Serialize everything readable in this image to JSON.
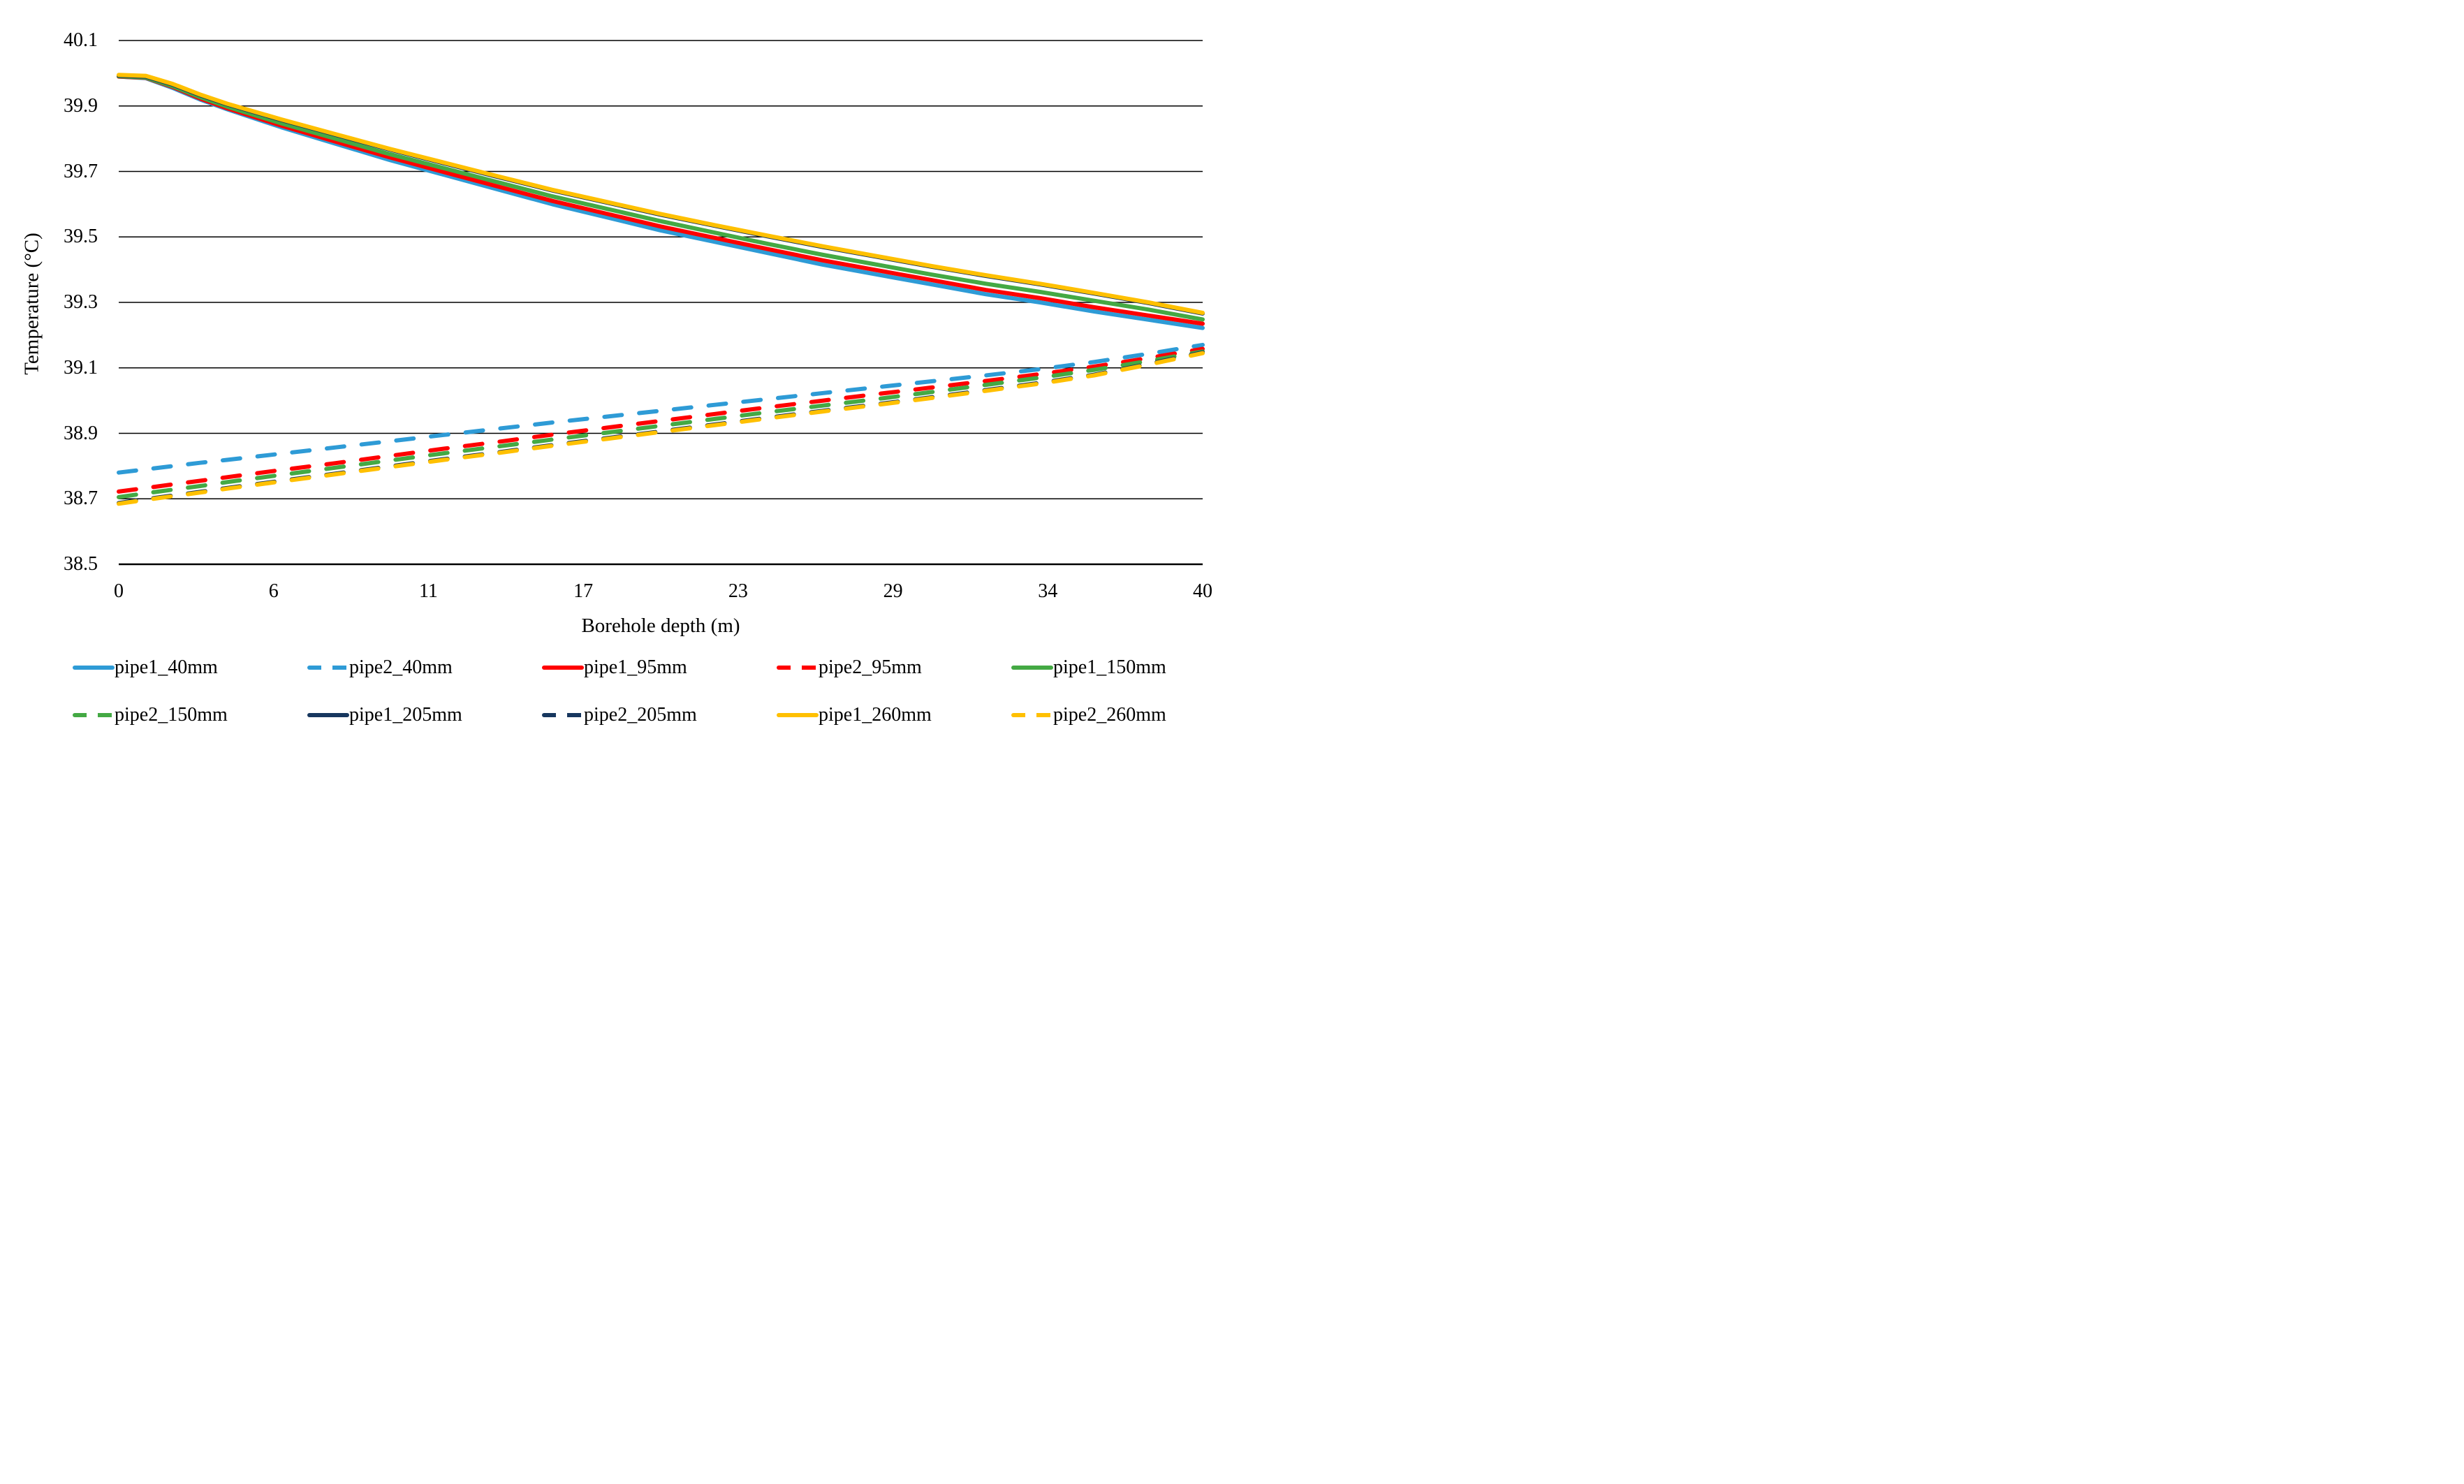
{
  "chart_data": {
    "type": "line",
    "title": "",
    "xlabel": "Borehole depth (m)",
    "ylabel": "Temperature (°C)",
    "xlim": [
      0,
      40
    ],
    "ylim": [
      38.5,
      40.1
    ],
    "grid": "horizontal-black-gridlines",
    "background": "#ffffff",
    "text_color": "#000000",
    "gridline_color": "#000000",
    "legend_position": "bottom",
    "legend_columns": 5,
    "x_tick_labels": [
      "0",
      "6",
      "11",
      "17",
      "23",
      "29",
      "34",
      "40"
    ],
    "y_tick_labels": [
      "40.1",
      "39.9",
      "39.7",
      "39.5",
      "39.3",
      "39.1",
      "38.9",
      "38.7",
      "38.5"
    ],
    "x": [
      0,
      1,
      2,
      3,
      4,
      6,
      8,
      10,
      12,
      14,
      16,
      18,
      20,
      22,
      24,
      26,
      28,
      30,
      32,
      34,
      36,
      38,
      40
    ],
    "series": [
      {
        "name": "pipe1_40mm",
        "color": "#2E9BD6",
        "style": "solid",
        "values": [
          39.99,
          39.985,
          39.955,
          39.92,
          39.89,
          39.835,
          39.785,
          39.735,
          39.69,
          39.645,
          39.6,
          39.56,
          39.52,
          39.485,
          39.45,
          39.415,
          39.385,
          39.355,
          39.325,
          39.3,
          39.272,
          39.247,
          39.222
        ]
      },
      {
        "name": "pipe2_40mm",
        "color": "#2E9BD6",
        "style": "dashed",
        "values": [
          38.78,
          38.79,
          38.8,
          38.81,
          38.819,
          38.838,
          38.857,
          38.876,
          38.895,
          38.914,
          38.933,
          38.951,
          38.969,
          38.987,
          39.005,
          39.023,
          39.041,
          39.059,
          39.077,
          39.096,
          39.118,
          39.143,
          39.17
        ]
      },
      {
        "name": "pipe1_95mm",
        "color": "#FF0000",
        "style": "solid",
        "values": [
          39.99,
          39.986,
          39.958,
          39.923,
          39.893,
          39.84,
          39.791,
          39.743,
          39.698,
          39.654,
          39.61,
          39.571,
          39.532,
          39.497,
          39.462,
          39.428,
          39.398,
          39.368,
          39.338,
          39.313,
          39.285,
          39.26,
          39.235
        ]
      },
      {
        "name": "pipe2_95mm",
        "color": "#FF0000",
        "style": "dashed",
        "values": [
          38.722,
          38.733,
          38.744,
          38.755,
          38.766,
          38.788,
          38.809,
          38.831,
          38.853,
          38.874,
          38.896,
          38.917,
          38.938,
          38.959,
          38.98,
          39.0,
          39.02,
          39.04,
          39.06,
          39.081,
          39.104,
          39.13,
          39.158
        ]
      },
      {
        "name": "pipe1_150mm",
        "color": "#44A944",
        "style": "solid",
        "values": [
          39.991,
          39.987,
          39.96,
          39.927,
          39.898,
          39.847,
          39.8,
          39.753,
          39.71,
          39.667,
          39.624,
          39.586,
          39.548,
          39.513,
          39.478,
          39.445,
          39.415,
          39.385,
          39.357,
          39.332,
          39.305,
          39.278,
          39.248
        ]
      },
      {
        "name": "pipe2_150mm",
        "color": "#44A944",
        "style": "dashed",
        "values": [
          38.705,
          38.717,
          38.728,
          38.739,
          38.751,
          38.773,
          38.795,
          38.817,
          38.839,
          38.86,
          38.881,
          38.902,
          38.923,
          38.944,
          38.965,
          38.985,
          39.005,
          39.026,
          39.048,
          39.07,
          39.094,
          39.121,
          39.15
        ]
      },
      {
        "name": "pipe1_205mm",
        "color": "#17375E",
        "style": "solid",
        "values": [
          39.993,
          39.99,
          39.965,
          39.933,
          39.905,
          39.857,
          39.812,
          39.767,
          39.725,
          39.683,
          39.642,
          39.605,
          39.568,
          39.534,
          39.501,
          39.469,
          39.439,
          39.409,
          39.381,
          39.355,
          39.327,
          39.298,
          39.266
        ]
      },
      {
        "name": "pipe2_205mm",
        "color": "#17375E",
        "style": "dashed",
        "values": [
          38.687,
          38.699,
          38.71,
          38.721,
          38.733,
          38.755,
          38.777,
          38.799,
          38.821,
          38.842,
          38.864,
          38.885,
          38.906,
          38.927,
          38.948,
          38.969,
          38.989,
          39.01,
          39.032,
          39.054,
          39.079,
          39.112,
          39.147
        ]
      },
      {
        "name": "pipe1_260mm",
        "color": "#FFC000",
        "style": "solid",
        "values": [
          39.995,
          39.992,
          39.967,
          39.935,
          39.907,
          39.859,
          39.814,
          39.769,
          39.727,
          39.685,
          39.644,
          39.607,
          39.57,
          39.536,
          39.503,
          39.471,
          39.441,
          39.411,
          39.383,
          39.357,
          39.329,
          39.3,
          39.268
        ]
      },
      {
        "name": "pipe2_260mm",
        "color": "#FFC000",
        "style": "dashed",
        "values": [
          38.685,
          38.697,
          38.708,
          38.719,
          38.731,
          38.753,
          38.775,
          38.797,
          38.819,
          38.84,
          38.862,
          38.883,
          38.904,
          38.925,
          38.946,
          38.967,
          38.987,
          39.008,
          39.03,
          39.052,
          39.077,
          39.11,
          39.145
        ]
      }
    ]
  }
}
